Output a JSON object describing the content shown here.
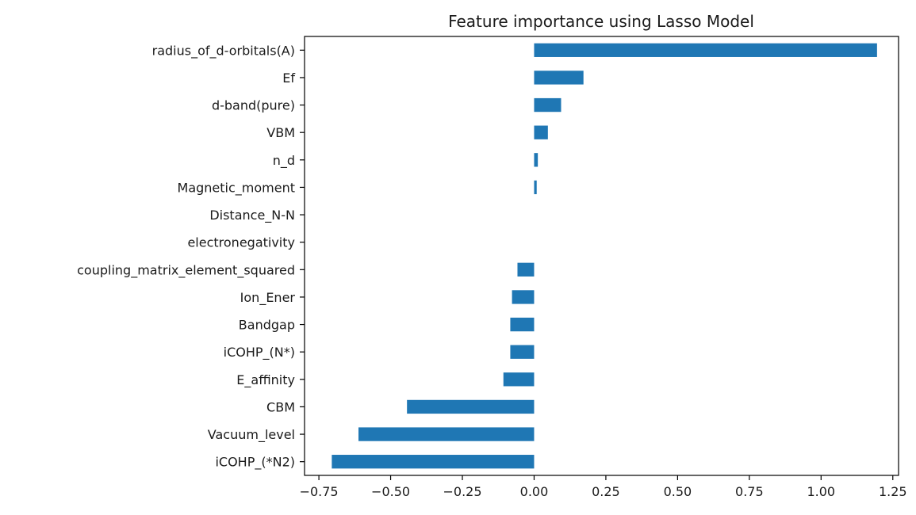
{
  "chart_data": {
    "type": "bar",
    "orientation": "horizontal",
    "title": "Feature importance using Lasso Model",
    "xlabel": "",
    "ylabel": "",
    "xlim": [
      -0.8,
      1.27
    ],
    "xticks": [
      -0.75,
      -0.5,
      -0.25,
      0.0,
      0.25,
      0.5,
      0.75,
      1.0,
      1.25
    ],
    "xtick_labels": [
      "−0.75",
      "−0.50",
      "−0.25",
      "0.00",
      "0.25",
      "0.50",
      "0.75",
      "1.00",
      "1.25"
    ],
    "grid": false,
    "bar_color": "#1f77b4",
    "categories": [
      "radius_of_d-orbitals(A)",
      "Ef",
      "d-band(pure)",
      "VBM",
      "n_d",
      "Magnetic_moment",
      "Distance_N-N",
      "electronegativity",
      "coupling_matrix_element_squared",
      "Ion_Ener",
      "Bandgap",
      "iCOHP_(N*)",
      "E_affinity",
      "CBM",
      "Vacuum_level",
      "iCOHP_(*N2)"
    ],
    "values": [
      1.195,
      0.172,
      0.094,
      0.048,
      0.013,
      0.009,
      0.0,
      0.0,
      -0.058,
      -0.077,
      -0.083,
      -0.083,
      -0.107,
      -0.443,
      -0.612,
      -0.705
    ]
  }
}
